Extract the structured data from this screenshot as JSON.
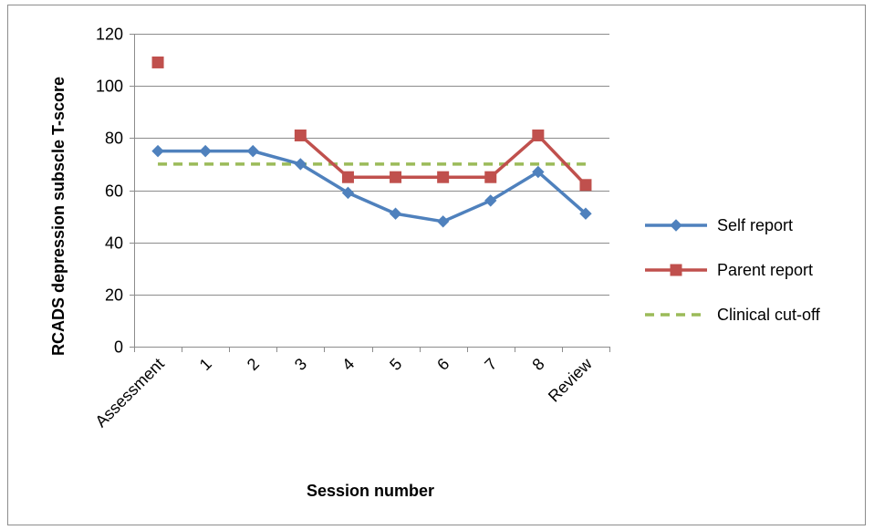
{
  "chart_data": {
    "type": "line",
    "title": "",
    "xlabel": "Session number",
    "ylabel": "RCADS depression subscle T-score",
    "categories": [
      "Assessment",
      "1",
      "2",
      "3",
      "4",
      "5",
      "6",
      "7",
      "8",
      "Review"
    ],
    "ylim": [
      0,
      120
    ],
    "yticks": [
      0,
      20,
      40,
      60,
      80,
      100,
      120
    ],
    "grid": true,
    "legend_position": "right",
    "series": [
      {
        "name": "Self report",
        "color": "#4f81bd",
        "marker": "diamond",
        "line_style": "solid",
        "values": [
          75,
          75,
          75,
          70,
          59,
          51,
          48,
          56,
          67,
          51
        ]
      },
      {
        "name": "Parent report",
        "color": "#c0504d",
        "marker": "square",
        "line_style": "solid",
        "values": [
          109,
          null,
          null,
          81,
          65,
          65,
          65,
          65,
          81,
          62
        ]
      },
      {
        "name": "Clinical cut-off",
        "color": "#9bbb59",
        "marker": "none",
        "line_style": "dashed",
        "values": [
          70,
          70,
          70,
          70,
          70,
          70,
          70,
          70,
          70,
          70
        ]
      }
    ]
  }
}
